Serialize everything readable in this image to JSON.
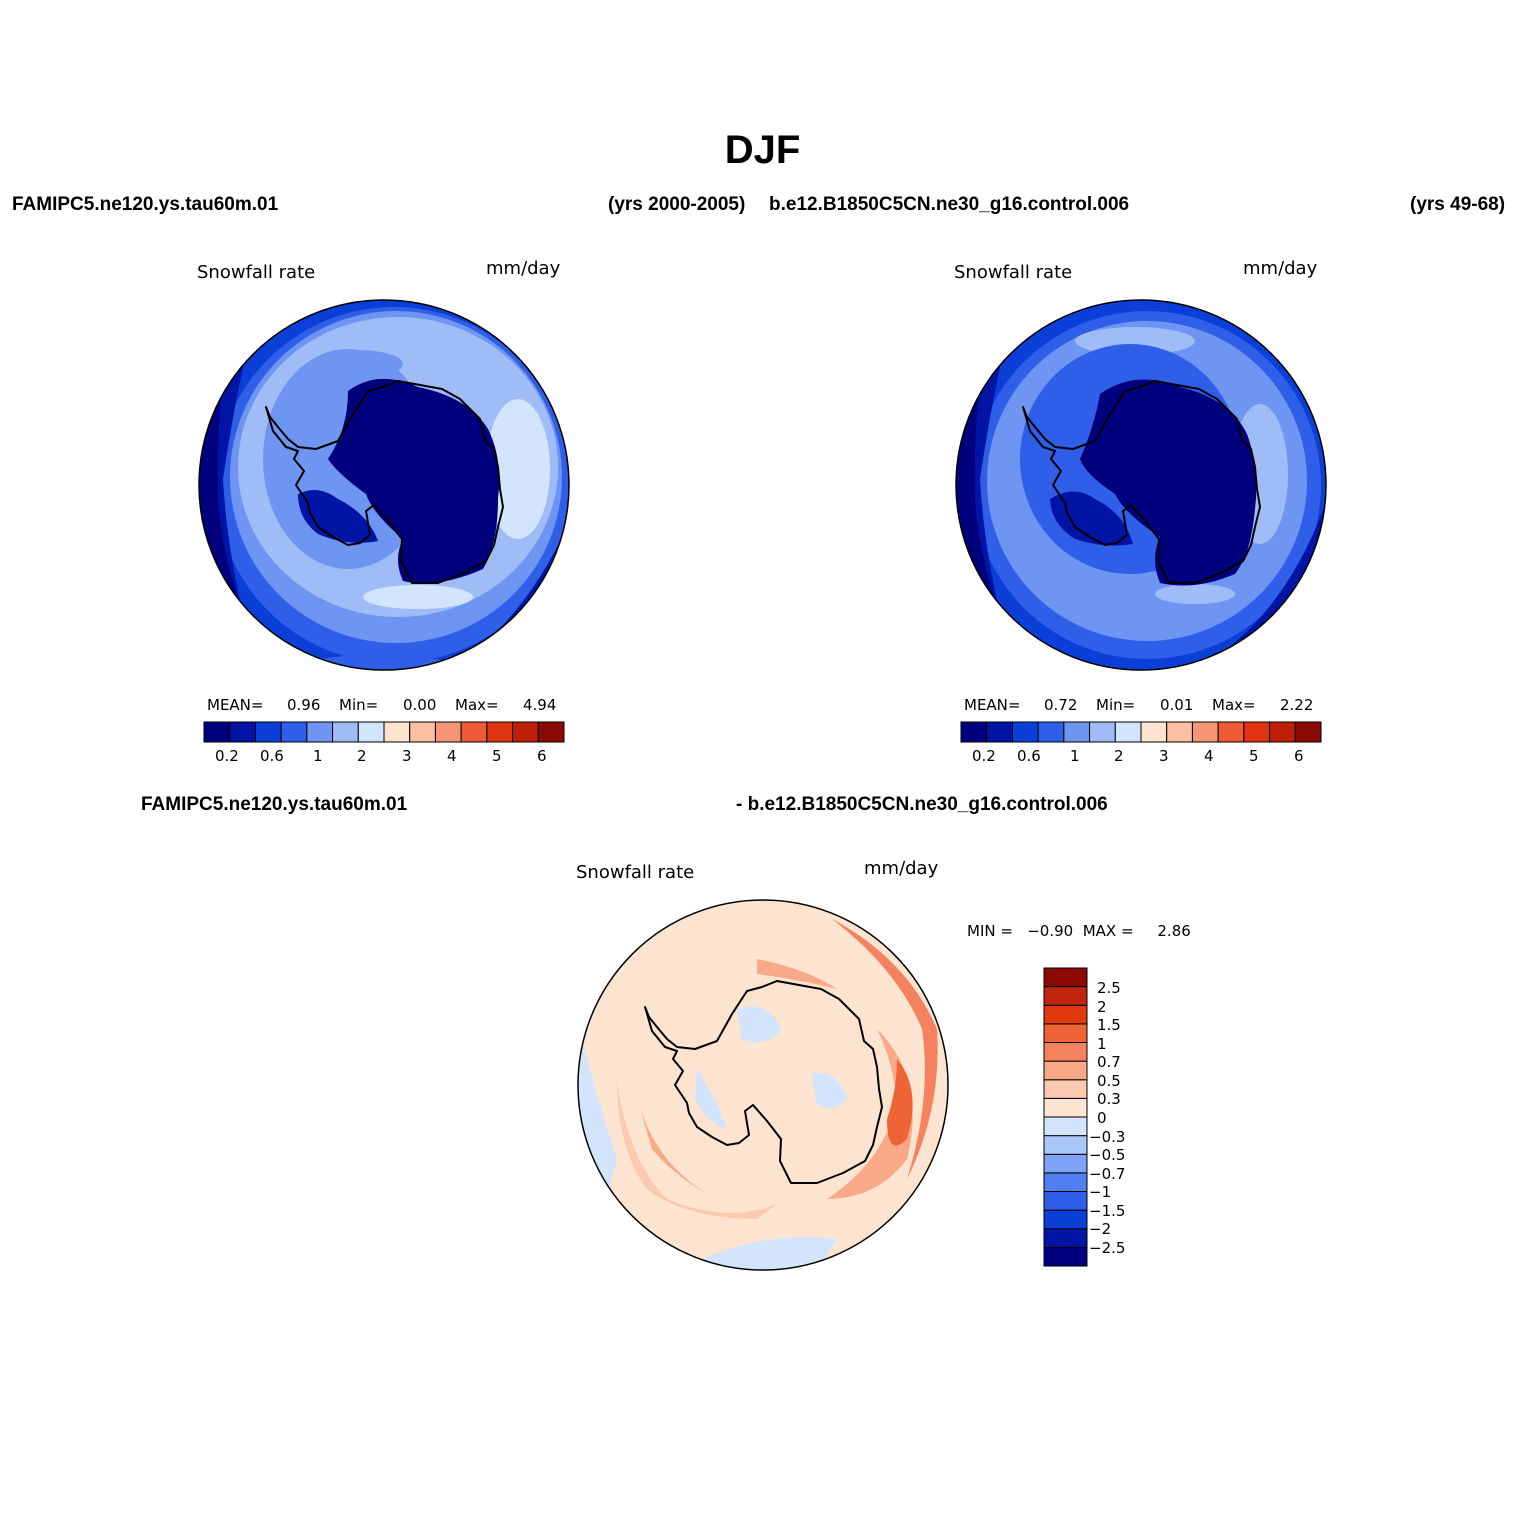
{
  "figure": {
    "title": "DJF",
    "case1_name": "FAMIPC5.ne120.ys.tau60m.01",
    "case1_years": "(yrs 2000-2005)",
    "case2_name": "b.e12.B1850C5CN.ne30_g16.control.006",
    "case2_years": "(yrs 49-68)",
    "diff_name1": "FAMIPC5.ne120.ys.tau60m.01",
    "diff_name2": "- b.e12.B1850C5CN.ne30_g16.control.006"
  },
  "colors": {
    "abs_palette": [
      "#00007f",
      "#0015a5",
      "#0a3fd8",
      "#2f5fe8",
      "#6f95f2",
      "#9fbcf7",
      "#d3e5fd",
      "#fde4d1",
      "#fbc0a3",
      "#f79476",
      "#ee5a35",
      "#e03311",
      "#bd1f09",
      "#8c0a06"
    ],
    "diff_palette": [
      "#00007f",
      "#0015a5",
      "#0a3fd8",
      "#2f5fe8",
      "#4f7ff0",
      "#7ea2f5",
      "#aac7fa",
      "#d3e5fd",
      "#fde4d1",
      "#fbc9b0",
      "#f9a888",
      "#f5825e",
      "#ef6437",
      "#e13a0f",
      "#bf260d",
      "#8c0a06"
    ]
  },
  "panels": [
    {
      "label": "Snowfall rate",
      "units": "mm/day",
      "mean_label": "MEAN=",
      "mean": "0.96",
      "min_label": "Min=",
      "min": "0.00",
      "max_label": "Max=",
      "max": "4.94",
      "tick_labels": [
        "0.2",
        "0.6",
        "1",
        "2",
        "3",
        "4",
        "5",
        "6"
      ]
    },
    {
      "label": "Snowfall rate",
      "units": "mm/day",
      "mean_label": "MEAN=",
      "mean": "0.72",
      "min_label": "Min=",
      "min": "0.01",
      "max_label": "Max=",
      "max": "2.22",
      "tick_labels": [
        "0.2",
        "0.6",
        "1",
        "2",
        "3",
        "4",
        "5",
        "6"
      ]
    }
  ],
  "diff_panel": {
    "label": "Snowfall rate",
    "units": "mm/day",
    "minmax_text": "MIN =   −0.90  MAX =     2.86",
    "levels": [
      "2.5",
      "2",
      "1.5",
      "1",
      "0.7",
      "0.5",
      "0.3",
      "0",
      "−0.3",
      "−0.5",
      "−0.7",
      "−1",
      "−1.5",
      "−2",
      "−2.5"
    ]
  }
}
